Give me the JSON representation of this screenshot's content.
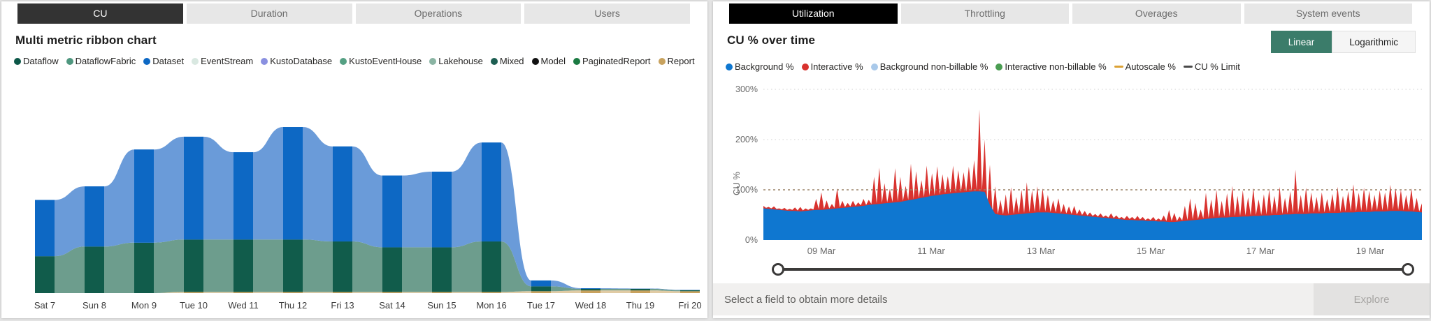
{
  "left_panel": {
    "tabs": [
      {
        "label": "CU",
        "active": true
      },
      {
        "label": "Duration",
        "active": false
      },
      {
        "label": "Operations",
        "active": false
      },
      {
        "label": "Users",
        "active": false
      }
    ],
    "title": "Multi metric ribbon chart",
    "legend": [
      {
        "label": "Dataflow",
        "color": "#0c5748",
        "marker": "dot"
      },
      {
        "label": "DataflowFabric",
        "color": "#4f977f",
        "marker": "dot"
      },
      {
        "label": "Dataset",
        "color": "#0d68c4",
        "marker": "dot"
      },
      {
        "label": "EventStream",
        "color": "#d9e8e1",
        "marker": "dot"
      },
      {
        "label": "KustoDatabase",
        "color": "#8a90e0",
        "marker": "dot"
      },
      {
        "label": "KustoEventHouse",
        "color": "#55a083",
        "marker": "dot"
      },
      {
        "label": "Lakehouse",
        "color": "#8ab4a3",
        "marker": "dot"
      },
      {
        "label": "Mixed",
        "color": "#1d5e52",
        "marker": "dot"
      },
      {
        "label": "Model",
        "color": "#111111",
        "marker": "dot"
      },
      {
        "label": "PaginatedReport",
        "color": "#1b7a42",
        "marker": "dot"
      },
      {
        "label": "Report",
        "color": "#c8a25e",
        "marker": "dot"
      }
    ],
    "chart_data": {
      "type": "area",
      "subtype": "ribbon",
      "title": "Multi metric ribbon chart",
      "categories": [
        "Sat 7",
        "Sun 8",
        "Mon 9",
        "Tue 10",
        "Wed 11",
        "Thu 12",
        "Fri 13",
        "Sat 14",
        "Sun 15",
        "Mon 16",
        "Tue 17",
        "Wed 18",
        "Thu 19",
        "Fri 20"
      ],
      "series": [
        {
          "name": "Report",
          "color": "#c8a25e",
          "ribbon_color": "#e0cba4",
          "values": [
            0,
            0,
            0,
            0.6,
            0.6,
            0.6,
            0.6,
            0.6,
            0.6,
            0.6,
            1,
            1.4,
            1.4,
            1
          ]
        },
        {
          "name": "Dataflow",
          "color": "#115c4b",
          "ribbon_color": "#6d9d8d",
          "values": [
            19,
            24,
            26,
            27,
            27,
            27,
            26,
            23,
            23,
            26,
            2.5,
            0.8,
            0.8,
            0.5
          ]
        },
        {
          "name": "Dataset",
          "color": "#0d68c4",
          "ribbon_color": "#6a9bd9",
          "values": [
            29,
            31,
            48,
            53,
            45,
            58,
            49,
            37,
            39,
            51,
            3,
            0.3,
            0.2,
            0.2
          ]
        }
      ],
      "ylim": [
        0,
        100
      ],
      "y_axis_hidden": true,
      "grid": false
    }
  },
  "right_panel": {
    "tabs": [
      {
        "label": "Utilization",
        "active": true
      },
      {
        "label": "Throttling",
        "active": false
      },
      {
        "label": "Overages",
        "active": false
      },
      {
        "label": "System events",
        "active": false
      }
    ],
    "title": "CU % over time",
    "scale_toggle": {
      "options": [
        "Linear",
        "Logarithmic"
      ],
      "selected": "Linear"
    },
    "legend": [
      {
        "label": "Background %",
        "color": "#0f77d0",
        "marker": "dot"
      },
      {
        "label": "Interactive %",
        "color": "#d8322e",
        "marker": "dot"
      },
      {
        "label": "Background non-billable %",
        "color": "#a9c9ea",
        "marker": "dot"
      },
      {
        "label": "Interactive non-billable %",
        "color": "#4a9d52",
        "marker": "dot"
      },
      {
        "label": "Autoscale %",
        "color": "#dca235",
        "marker": "dash"
      },
      {
        "label": "CU % Limit",
        "color": "#4a4a4a",
        "marker": "dash"
      }
    ],
    "chart_data": {
      "type": "area",
      "title": "CU % over time",
      "ylabel": "CU %",
      "yticks": [
        0,
        100,
        200,
        300
      ],
      "ytick_labels": [
        "0%",
        "100%",
        "200%",
        "300%"
      ],
      "ylim": [
        0,
        300
      ],
      "xtick_labels": [
        "09 Mar",
        "11 Mar",
        "13 Mar",
        "15 Mar",
        "17 Mar",
        "19 Mar"
      ],
      "x_range": [
        "08 Mar",
        "20 Mar"
      ],
      "cu_limit_pct": 100,
      "grid": "dotted",
      "legend_position": "top",
      "series": [
        {
          "name": "Background %",
          "color": "#0f77d0",
          "values": [
            63,
            62,
            61,
            60,
            59,
            58,
            58,
            57,
            58,
            59,
            60,
            60,
            61,
            62,
            63,
            64,
            65,
            66,
            67,
            68,
            70,
            71,
            72,
            73,
            74,
            75,
            76,
            78,
            80,
            82,
            84,
            86,
            88,
            89,
            91,
            92,
            93,
            94,
            95,
            96,
            97,
            97,
            96,
            70,
            52,
            50,
            49,
            50,
            51,
            52,
            53,
            54,
            55,
            55,
            55,
            54,
            53,
            52,
            51,
            50,
            49,
            48,
            47,
            46,
            45,
            44,
            43,
            42,
            41,
            40,
            40,
            39,
            39,
            38,
            38,
            37,
            37,
            36,
            36,
            37,
            38,
            39,
            40,
            41,
            42,
            43,
            44,
            45,
            45,
            46,
            46,
            47,
            47,
            48,
            48,
            49,
            49,
            50,
            50,
            51,
            51,
            52,
            52,
            52,
            53,
            53,
            53,
            54,
            54,
            54,
            55,
            55,
            55,
            56,
            56,
            56,
            57,
            57,
            57,
            58,
            58,
            58,
            57,
            57,
            56,
            55
          ]
        },
        {
          "name": "Interactive %",
          "color": "#d8322e",
          "stacked_on": "Background %",
          "values": [
            5,
            4,
            6,
            3,
            5,
            4,
            7,
            9,
            5,
            4,
            22,
            35,
            18,
            10,
            40,
            14,
            9,
            12,
            8,
            14,
            10,
            55,
            72,
            40,
            28,
            68,
            50,
            30,
            72,
            55,
            35,
            62,
            45,
            58,
            40,
            35,
            55,
            45,
            40,
            50,
            62,
            163,
            104,
            80,
            55,
            30,
            42,
            55,
            35,
            48,
            62,
            45,
            52,
            48,
            35,
            25,
            30,
            20,
            16,
            18,
            12,
            10,
            8,
            6,
            8,
            5,
            10,
            7,
            5,
            8,
            6,
            9,
            7,
            5,
            8,
            6,
            12,
            24,
            18,
            10,
            30,
            44,
            34,
            20,
            52,
            38,
            56,
            33,
            48,
            62,
            42,
            52,
            38,
            56,
            33,
            42,
            52,
            38,
            56,
            33,
            46,
            88,
            38,
            52,
            42,
            33,
            42,
            28,
            38,
            52,
            33,
            42,
            56,
            38,
            48,
            42,
            33,
            42,
            38,
            52,
            45,
            42,
            33,
            46,
            28,
            18
          ]
        }
      ]
    },
    "slider": {
      "selected_start": "08 Mar",
      "selected_end": "20 Mar",
      "full_range_selected": true
    },
    "footer": {
      "hint": "Select a field to obtain more details",
      "explore_label": "Explore"
    }
  }
}
